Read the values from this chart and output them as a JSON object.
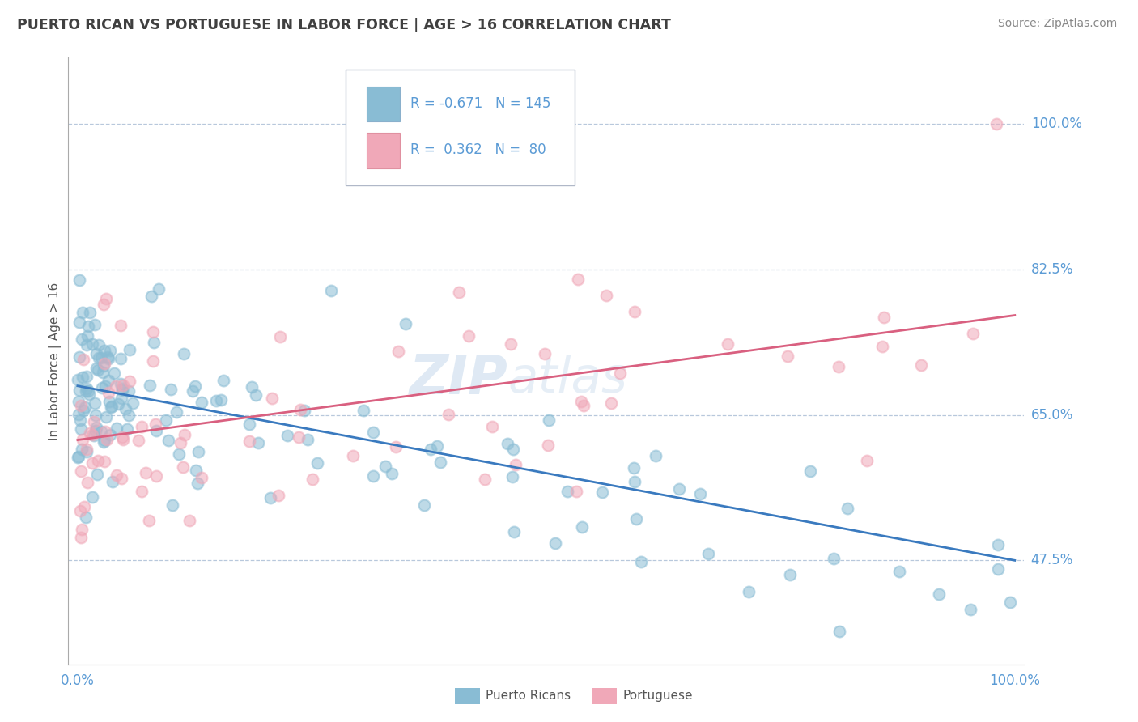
{
  "title": "PUERTO RICAN VS PORTUGUESE IN LABOR FORCE | AGE > 16 CORRELATION CHART",
  "source": "Source: ZipAtlas.com",
  "ylabel": "In Labor Force | Age > 16",
  "blue_color": "#89bcd4",
  "pink_color": "#f0a8b8",
  "blue_line_color": "#3a7abf",
  "pink_line_color": "#d96080",
  "legend_blue_r": "-0.671",
  "legend_blue_n": "145",
  "legend_pink_r": "0.362",
  "legend_pink_n": "80",
  "blue_label": "Puerto Ricans",
  "pink_label": "Portuguese",
  "watermark_text": "ZIP",
  "watermark_text2": "atlas",
  "background_color": "#ffffff",
  "grid_color": "#b8c8dc",
  "title_color": "#404040",
  "tick_label_color": "#5b9bd5",
  "ytick_vals": [
    47.5,
    65.0,
    82.5,
    100.0
  ],
  "blue_intercept": 68.5,
  "blue_slope": -0.205,
  "pink_intercept": 61.5,
  "pink_slope": 0.155
}
